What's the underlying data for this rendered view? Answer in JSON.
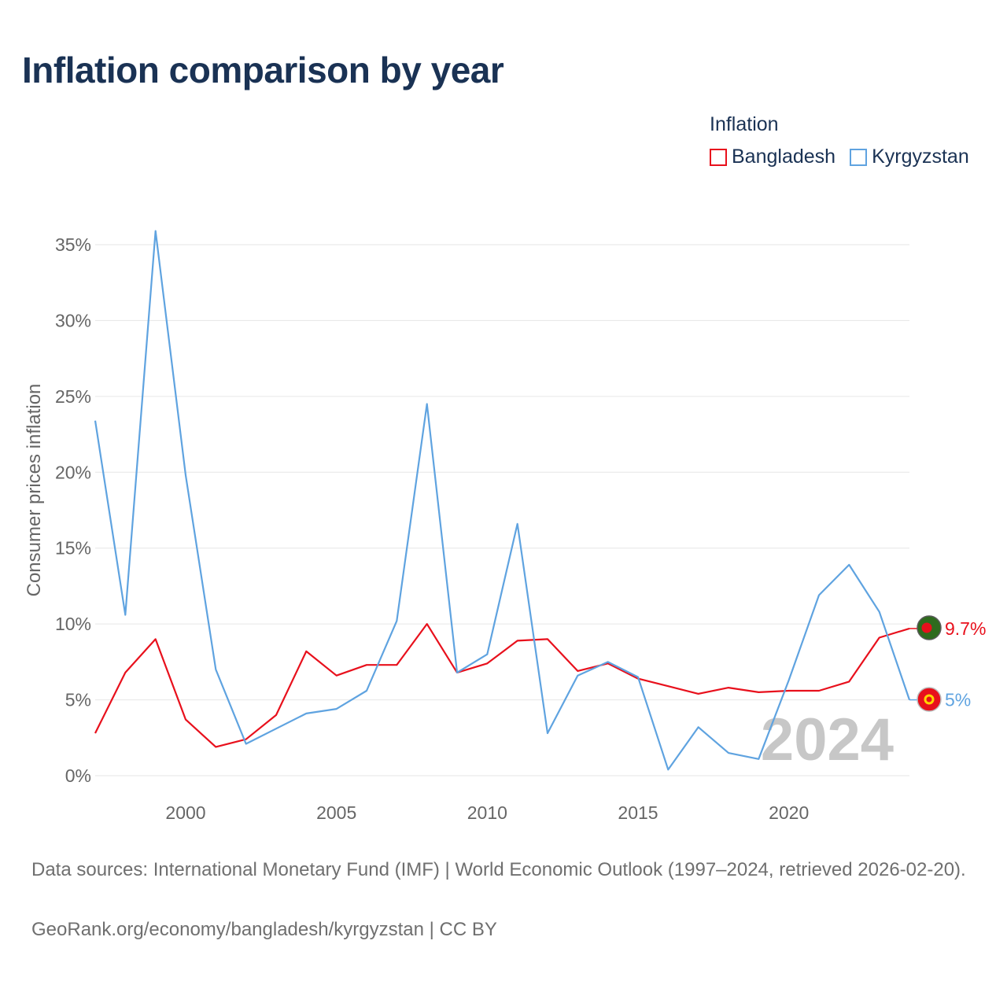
{
  "title": "Inflation comparison by year",
  "legend": {
    "title": "Inflation",
    "items": [
      {
        "label": "Bangladesh",
        "color": "#e8101c"
      },
      {
        "label": "Kyrgyzstan",
        "color": "#5fa3e0"
      }
    ]
  },
  "chart_data": {
    "type": "line",
    "ylabel": "Consumer prices inflation",
    "xlabel": "",
    "ylim": [
      0,
      35
    ],
    "xlim": [
      1997,
      2024
    ],
    "y_ticks": [
      0,
      5,
      10,
      15,
      20,
      25,
      30,
      35
    ],
    "y_tick_labels": [
      "0%",
      "5%",
      "10%",
      "15%",
      "20%",
      "25%",
      "30%",
      "35%"
    ],
    "x_ticks": [
      2000,
      2005,
      2010,
      2015,
      2020
    ],
    "x_tick_labels": [
      "2000",
      "2005",
      "2010",
      "2015",
      "2020"
    ],
    "grid": true,
    "year_watermark": "2024",
    "x": [
      1997,
      1998,
      1999,
      2000,
      2001,
      2002,
      2003,
      2004,
      2005,
      2006,
      2007,
      2008,
      2009,
      2010,
      2011,
      2012,
      2013,
      2014,
      2015,
      2016,
      2017,
      2018,
      2019,
      2020,
      2021,
      2022,
      2023,
      2024
    ],
    "series": [
      {
        "name": "Bangladesh",
        "color": "#e8101c",
        "end_label": "9.7%",
        "values": [
          2.8,
          6.8,
          9.0,
          3.7,
          1.9,
          2.4,
          4.0,
          8.2,
          6.6,
          7.3,
          7.3,
          10.0,
          6.8,
          7.4,
          8.9,
          9.0,
          6.9,
          7.4,
          6.4,
          5.9,
          5.4,
          5.8,
          5.5,
          5.6,
          5.6,
          6.2,
          9.1,
          9.7
        ]
      },
      {
        "name": "Kyrgyzstan",
        "color": "#5fa3e0",
        "end_label": "5%",
        "values": [
          23.4,
          10.6,
          35.9,
          19.8,
          7.0,
          2.1,
          3.1,
          4.1,
          4.4,
          5.6,
          10.2,
          24.5,
          6.8,
          8.0,
          16.6,
          2.8,
          6.6,
          7.5,
          6.5,
          0.4,
          3.2,
          1.5,
          1.1,
          6.3,
          11.9,
          13.9,
          10.8,
          5.0
        ]
      }
    ]
  },
  "footer": {
    "sources": "Data sources: International Monetary Fund (IMF) | World Economic Outlook (1997–2024, retrieved 2026-02-20).",
    "credit": "GeoRank.org/economy/bangladesh/kyrgyzstan | CC BY"
  }
}
